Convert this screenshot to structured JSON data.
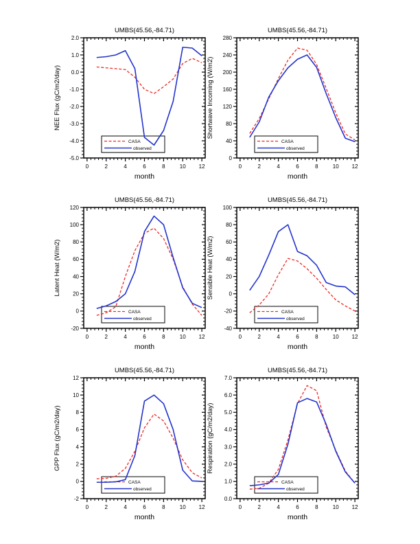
{
  "figure": {
    "background": "#ffffff",
    "text_color": "#000000",
    "frame_color": "#000000",
    "legend": {
      "entries": [
        "CASA",
        "observed"
      ],
      "position": "lower-left",
      "border_color": "#000000"
    },
    "colors": {
      "casa": "#ee2822",
      "observed": "#2233cc"
    }
  },
  "chart_data": [
    {
      "type": "line",
      "title": "UMBS(45.56,-84.71)",
      "xlabel": "month",
      "ylabel": "NEE Flux (gC/m2/day)",
      "x": [
        1,
        2,
        3,
        4,
        5,
        6,
        7,
        8,
        9,
        10,
        11,
        12
      ],
      "xlim": [
        -0.35,
        12.35
      ],
      "xticks": [
        0,
        2,
        4,
        6,
        8,
        10,
        12
      ],
      "ylim": [
        -5.0,
        2.0
      ],
      "ytick_step": 1.0,
      "ytick_decimals": 1,
      "grid": false,
      "legend_position": "lower-left",
      "series": [
        {
          "name": "CASA",
          "style": "dashed",
          "color": "#ee2822",
          "values": [
            0.3,
            0.25,
            0.2,
            0.15,
            -0.3,
            -1.0,
            -1.25,
            -0.85,
            -0.4,
            0.5,
            0.8,
            0.55
          ]
        },
        {
          "name": "observed",
          "style": "solid",
          "color": "#2233cc",
          "values": [
            0.85,
            0.9,
            1.0,
            1.25,
            0.2,
            -3.8,
            -4.25,
            -3.4,
            -1.7,
            1.45,
            1.4,
            0.95
          ]
        }
      ]
    },
    {
      "type": "line",
      "title": "UMBS(45.56,-84.71)",
      "xlabel": "month",
      "ylabel": "Shortwave Incoming (W/m2)",
      "x": [
        1,
        2,
        3,
        4,
        5,
        6,
        7,
        8,
        9,
        10,
        11,
        12
      ],
      "xlim": [
        -0.35,
        12.35
      ],
      "xticks": [
        0,
        2,
        4,
        6,
        8,
        10,
        12
      ],
      "ylim": [
        0,
        280
      ],
      "ytick_step": 40,
      "ytick_decimals": 0,
      "grid": false,
      "legend_position": "lower-left",
      "series": [
        {
          "name": "CASA",
          "style": "dashed",
          "color": "#ee2822",
          "values": [
            57,
            92,
            138,
            185,
            228,
            256,
            251,
            218,
            162,
            105,
            56,
            42
          ]
        },
        {
          "name": "observed",
          "style": "solid",
          "color": "#2233cc",
          "values": [
            48,
            84,
            142,
            180,
            210,
            230,
            240,
            211,
            150,
            94,
            46,
            38
          ]
        }
      ]
    },
    {
      "type": "line",
      "title": "UMBS(45.56,-84.71)",
      "xlabel": "month",
      "ylabel": "Latent Heat (W/m2)",
      "x": [
        1,
        2,
        3,
        4,
        5,
        6,
        7,
        8,
        9,
        10,
        11,
        12
      ],
      "xlim": [
        -0.35,
        12.35
      ],
      "xticks": [
        0,
        2,
        4,
        6,
        8,
        10,
        12
      ],
      "ylim": [
        -20,
        120
      ],
      "ytick_step": 20,
      "ytick_decimals": 0,
      "grid": false,
      "legend_position": "lower-left",
      "series": [
        {
          "name": "CASA",
          "style": "dashed",
          "color": "#ee2822",
          "values": [
            -5,
            -2,
            5,
            40,
            70,
            90,
            96,
            84,
            60,
            28,
            8,
            -5
          ]
        },
        {
          "name": "observed",
          "style": "solid",
          "color": "#2233cc",
          "values": [
            3,
            6,
            11,
            20,
            46,
            92,
            110,
            100,
            62,
            27,
            9,
            4
          ]
        }
      ]
    },
    {
      "type": "line",
      "title": "UMBS(45.56,-84.71)",
      "xlabel": "month",
      "ylabel": "Sensible Heat (W/m2)",
      "x": [
        1,
        2,
        3,
        4,
        5,
        6,
        7,
        8,
        9,
        10,
        11,
        12
      ],
      "xlim": [
        -0.35,
        12.35
      ],
      "xticks": [
        0,
        2,
        4,
        6,
        8,
        10,
        12
      ],
      "ylim": [
        -40,
        100
      ],
      "ytick_step": 20,
      "ytick_decimals": 0,
      "grid": false,
      "legend_position": "lower-left",
      "series": [
        {
          "name": "CASA",
          "style": "dashed",
          "color": "#ee2822",
          "values": [
            -22,
            -13,
            0,
            22,
            41,
            38,
            29,
            18,
            5,
            -7,
            -14,
            -20
          ]
        },
        {
          "name": "observed",
          "style": "solid",
          "color": "#2233cc",
          "values": [
            4,
            20,
            45,
            72,
            80,
            49,
            44,
            33,
            13,
            9,
            8,
            -1
          ]
        }
      ]
    },
    {
      "type": "line",
      "title": "UMBS(45.56,-84.71)",
      "xlabel": "month",
      "ylabel": "GPP Flux (gC/m2/day)",
      "x": [
        1,
        2,
        3,
        4,
        5,
        6,
        7,
        8,
        9,
        10,
        11,
        12
      ],
      "xlim": [
        -0.35,
        12.35
      ],
      "xticks": [
        0,
        2,
        4,
        6,
        8,
        10,
        12
      ],
      "ylim": [
        -2,
        12
      ],
      "ytick_step": 2,
      "ytick_decimals": 0,
      "grid": false,
      "legend_position": "lower-left",
      "series": [
        {
          "name": "CASA",
          "style": "dashed",
          "color": "#ee2822",
          "values": [
            0.3,
            0.35,
            0.6,
            1.5,
            3.5,
            6.2,
            7.8,
            7.0,
            5.0,
            2.5,
            1.0,
            0.4
          ]
        },
        {
          "name": "observed",
          "style": "solid",
          "color": "#2233cc",
          "values": [
            -0.1,
            -0.1,
            -0.05,
            0.2,
            3.0,
            9.3,
            10.0,
            9.0,
            6.0,
            1.3,
            0.05,
            0.0
          ]
        }
      ]
    },
    {
      "type": "line",
      "title": "UMBS(45.56,-84.71)",
      "xlabel": "month",
      "ylabel": "Respiration (gC/m2/day)",
      "x": [
        1,
        2,
        3,
        4,
        5,
        6,
        7,
        8,
        9,
        10,
        11,
        12
      ],
      "xlim": [
        -0.35,
        12.35
      ],
      "xticks": [
        0,
        2,
        4,
        6,
        8,
        10,
        12
      ],
      "ylim": [
        0.0,
        7.0
      ],
      "ytick_step": 1.0,
      "ytick_decimals": 1,
      "grid": false,
      "legend_position": "lower-left",
      "series": [
        {
          "name": "CASA",
          "style": "dashed",
          "color": "#ee2822",
          "values": [
            0.55,
            0.6,
            0.9,
            1.7,
            3.4,
            5.5,
            6.55,
            6.25,
            4.15,
            2.8,
            1.6,
            0.9
          ]
        },
        {
          "name": "observed",
          "style": "solid",
          "color": "#2233cc",
          "values": [
            0.75,
            0.8,
            0.9,
            1.4,
            3.15,
            5.55,
            5.8,
            5.6,
            4.3,
            2.75,
            1.55,
            0.9
          ]
        }
      ]
    }
  ]
}
